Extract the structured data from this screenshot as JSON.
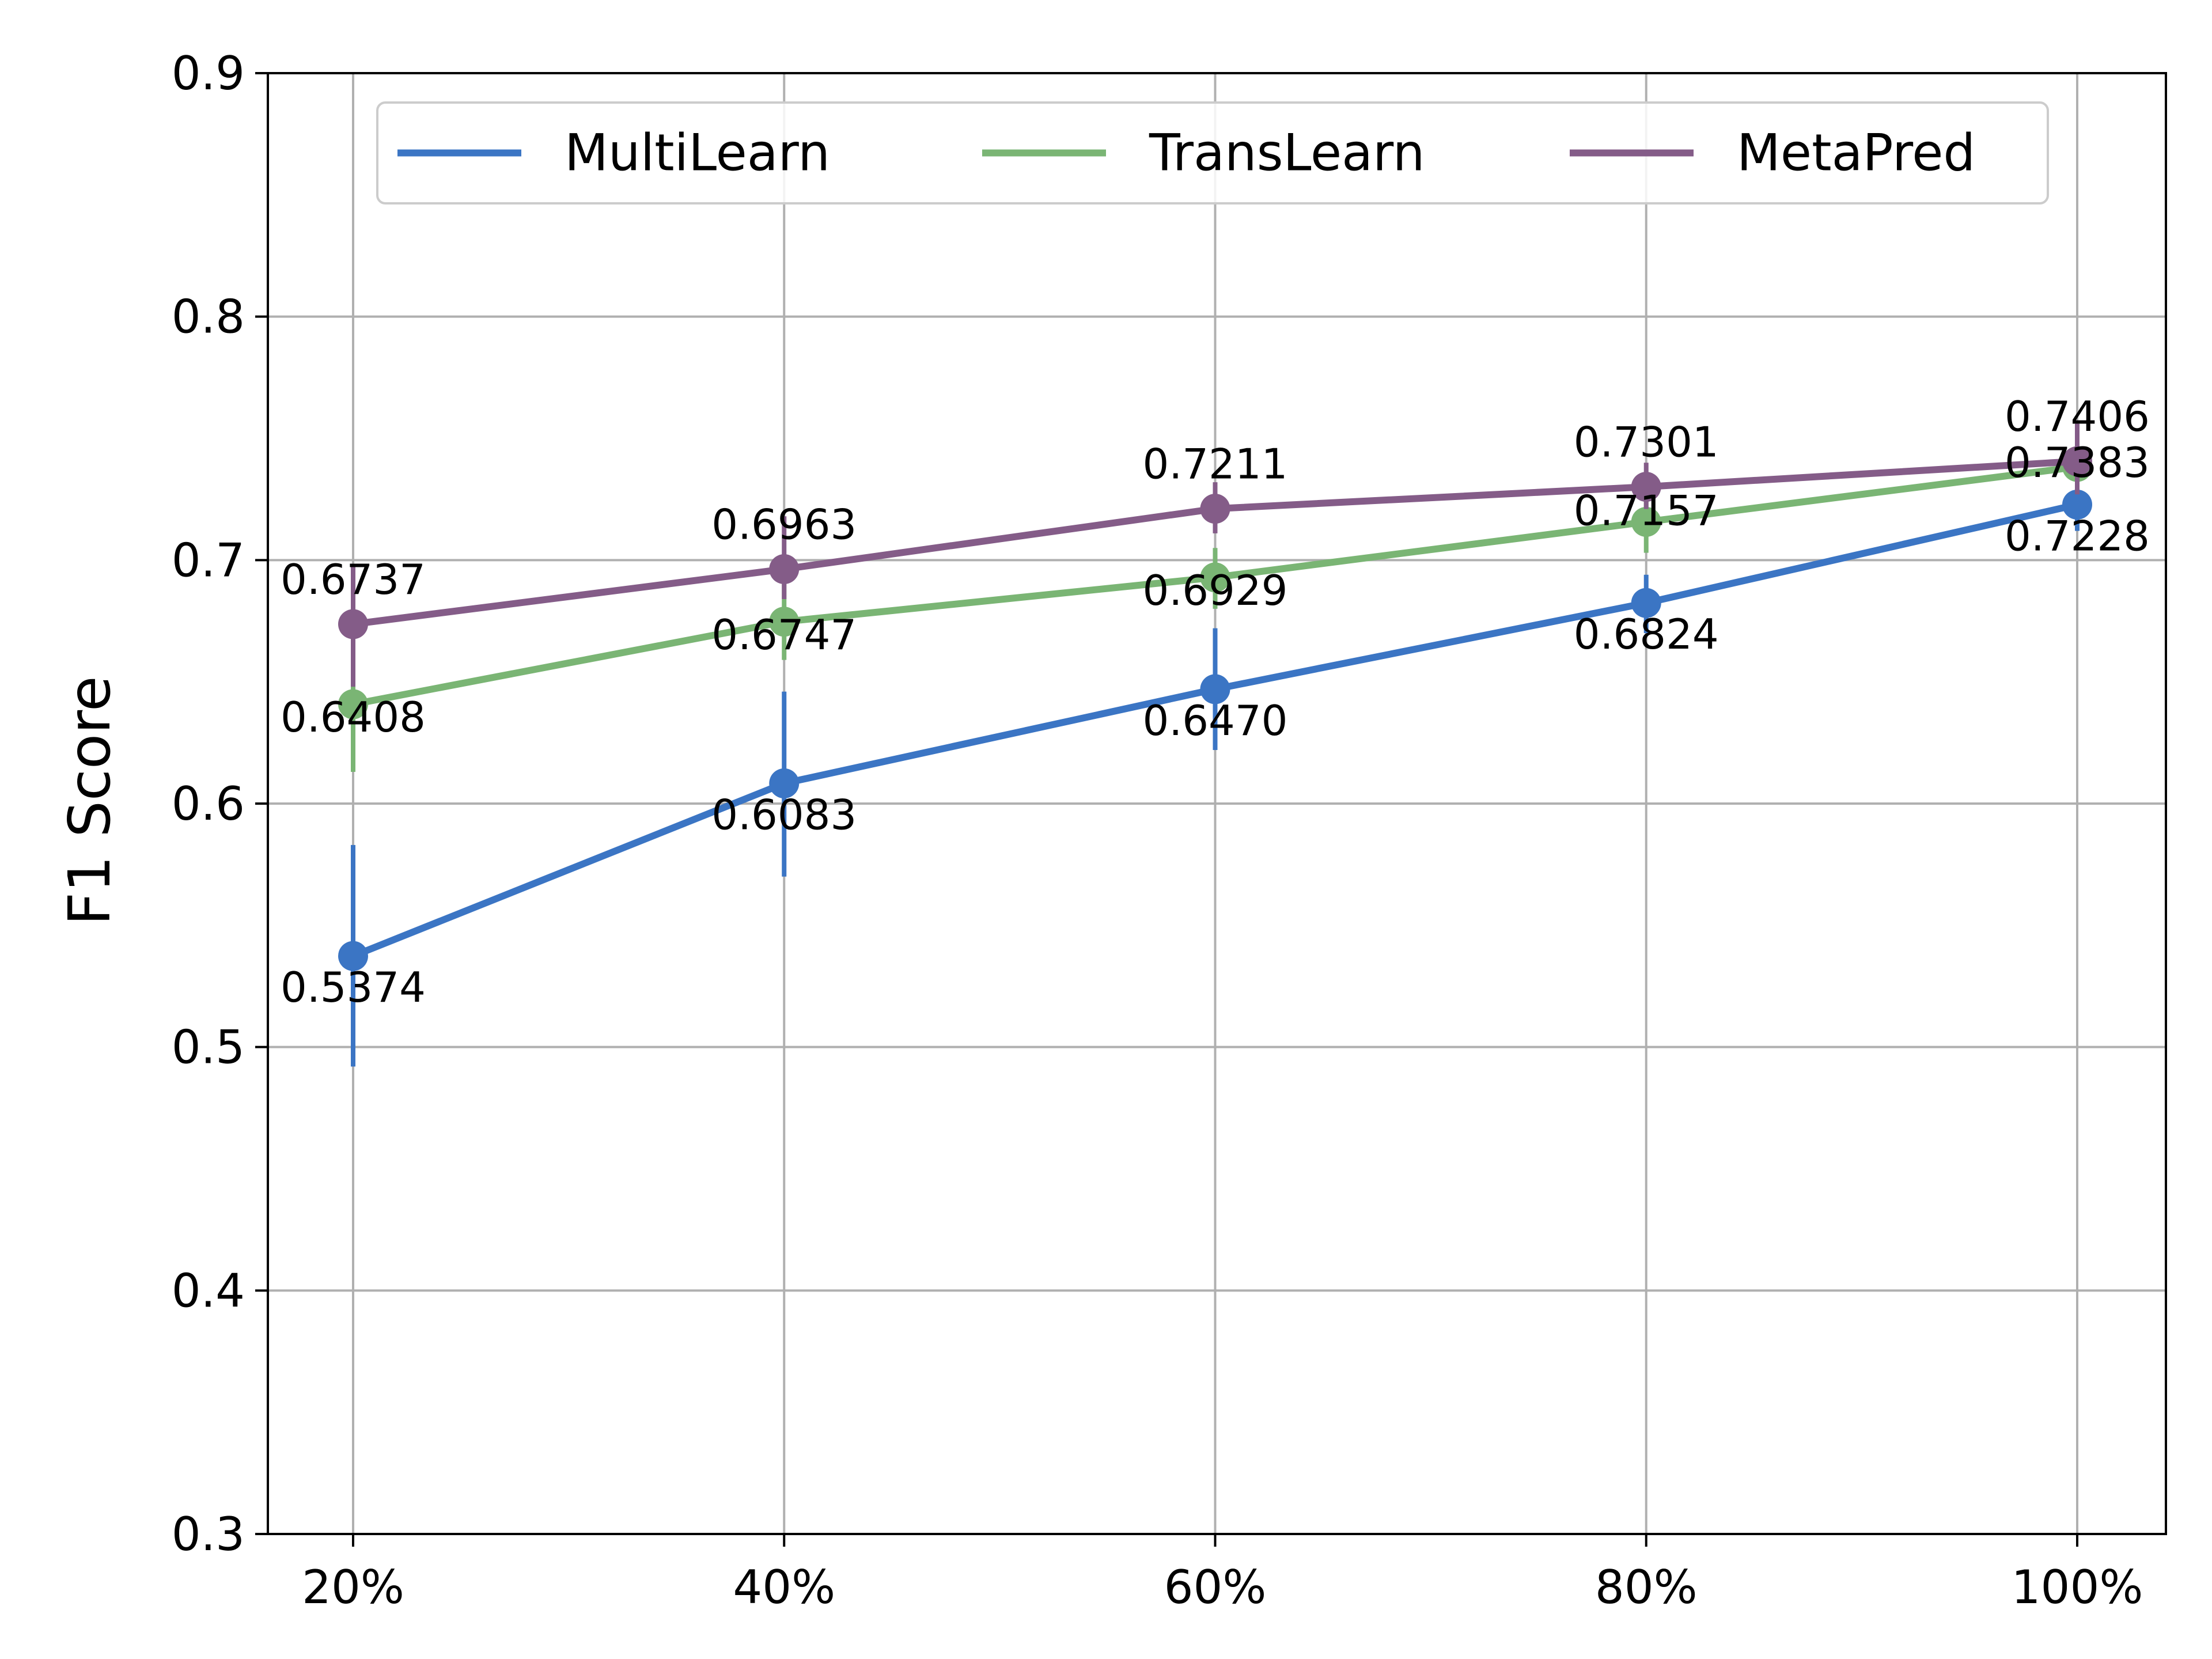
{
  "chart_data": {
    "type": "line",
    "xlabel": "",
    "ylabel": "F1 Score",
    "categories": [
      "20%",
      "40%",
      "60%",
      "80%",
      "100%"
    ],
    "ylim": [
      0.3,
      0.9
    ],
    "yticks": [
      "0.3",
      "0.4",
      "0.5",
      "0.6",
      "0.7",
      "0.8",
      "0.9"
    ],
    "grid": true,
    "legend_position": "top",
    "series": [
      {
        "name": "MultiLearn",
        "color": "#3b75c4",
        "values": [
          0.5374,
          0.6083,
          0.647,
          0.6824,
          0.7228
        ],
        "labels": [
          "0.5374",
          "0.6083",
          "0.6470",
          "0.6824",
          "0.7228"
        ],
        "err_low": [
          0.492,
          0.57,
          0.622,
          0.67,
          0.712
        ],
        "err_high": [
          0.583,
          0.646,
          0.672,
          0.694,
          0.734
        ]
      },
      {
        "name": "TransLearn",
        "color": "#7ab574",
        "values": [
          0.6408,
          0.6747,
          0.6929,
          0.7157,
          0.7383
        ],
        "labels": [
          "0.6408",
          "0.6747",
          "0.6929",
          "0.7157",
          "0.7383"
        ],
        "err_low": [
          0.613,
          0.659,
          0.68,
          0.703,
          0.729
        ],
        "err_high": [
          0.657,
          0.69,
          0.705,
          0.728,
          0.748
        ]
      },
      {
        "name": "MetaPred",
        "color": "#845c88",
        "values": [
          0.6737,
          0.6963,
          0.7211,
          0.7301,
          0.7406
        ],
        "labels": [
          "0.6737",
          "0.6963",
          "0.7211",
          "0.7301",
          "0.7406"
        ],
        "err_low": [
          0.648,
          0.684,
          0.711,
          0.721,
          0.727
        ],
        "err_high": [
          0.698,
          0.718,
          0.732,
          0.74,
          0.756
        ]
      }
    ]
  }
}
